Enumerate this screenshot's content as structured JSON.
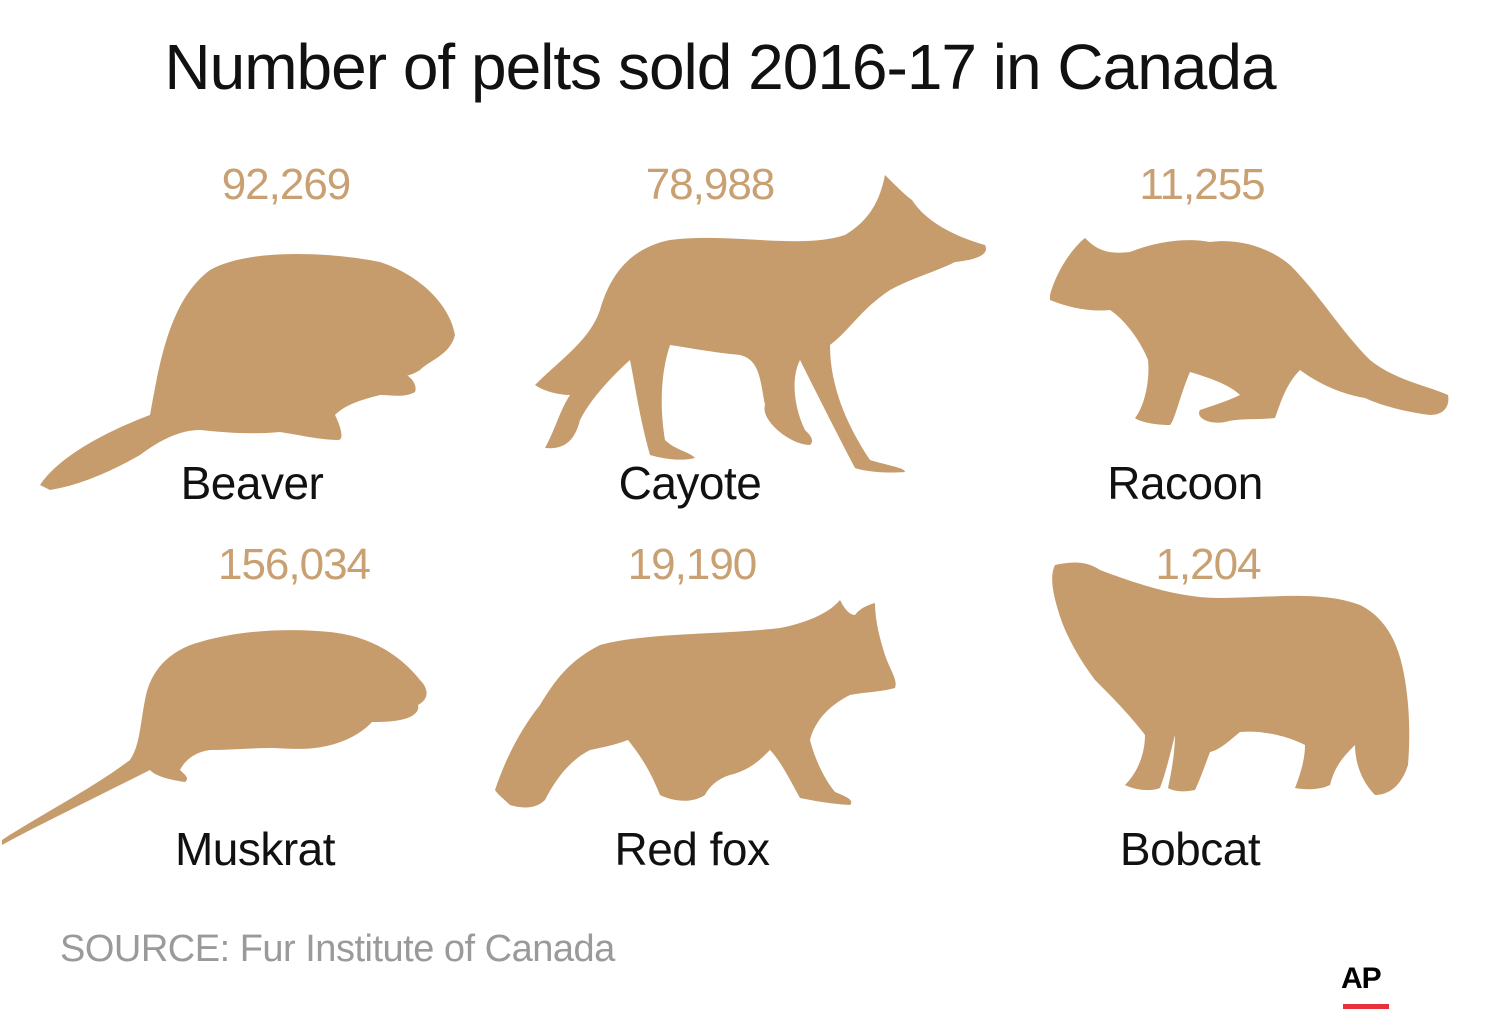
{
  "title": "Number of pelts sold 2016-17 in Canada",
  "source": "SOURCE: Fur Institute of Canada",
  "logo": "AP",
  "colors": {
    "silhouette": "#c69c6d",
    "value_text": "#c9a072",
    "logo_bar": "#e8303a"
  },
  "chart_data": {
    "type": "pictograph",
    "title": "Number of pelts sold 2016-17 in Canada",
    "categories": [
      "Beaver",
      "Cayote",
      "Racoon",
      "Muskrat",
      "Red fox",
      "Bobcat"
    ],
    "values": [
      92269,
      78988,
      11255,
      156034,
      19190,
      1204
    ],
    "value_labels": [
      "92,269",
      "78,988",
      "11,255",
      "156,034",
      "19,190",
      "1,204"
    ],
    "icons": [
      "beaver-icon",
      "coyote-icon",
      "raccoon-icon",
      "muskrat-icon",
      "red-fox-icon",
      "bobcat-icon"
    ]
  }
}
